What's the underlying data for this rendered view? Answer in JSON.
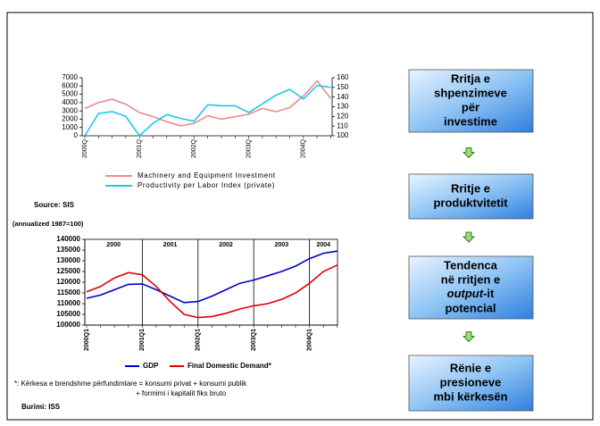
{
  "chart_data": [
    {
      "type": "line",
      "categories": [
        "2000Q",
        null,
        null,
        null,
        "2001Q",
        null,
        null,
        null,
        "2002Q",
        null,
        null,
        null,
        "2003Q",
        null,
        null,
        null,
        "2004Q",
        null,
        null
      ],
      "series": [
        {
          "name": "Machinery and Equipment Investment",
          "color": "#f08a8a",
          "values": [
            3300,
            4000,
            4400,
            3800,
            2800,
            2300,
            1700,
            1200,
            1500,
            2400,
            2000,
            2300,
            2600,
            3300,
            2900,
            3400,
            4800,
            6600,
            4500
          ]
        },
        {
          "name": "Productivity per Labor Index (private)",
          "color": "#1ec8e8",
          "axis": "y2",
          "values": [
            100,
            123,
            125,
            120,
            100,
            113,
            122,
            118,
            115,
            132,
            131,
            131,
            124,
            133,
            142,
            148,
            138,
            152,
            150
          ]
        }
      ],
      "ylim": [
        0,
        7000
      ],
      "yticks": [
        0,
        1000,
        2000,
        3000,
        4000,
        5000,
        6000,
        7000
      ],
      "y2lim": [
        100,
        160
      ],
      "y2ticks": [
        100,
        110,
        120,
        130,
        140,
        150,
        160
      ],
      "source": "Source: SIS"
    },
    {
      "type": "line",
      "subtitle": "(annualized 1987=100)",
      "periods": [
        "2000",
        "2001",
        "2002",
        "2003",
        "2004"
      ],
      "categories": [
        "2000Q1",
        null,
        null,
        null,
        "2001Q1",
        null,
        null,
        null,
        "2002Q1",
        null,
        null,
        null,
        "2003Q1",
        null,
        null,
        null,
        "2004Q1",
        null,
        null
      ],
      "series": [
        {
          "name": "GDP",
          "color": "#0000cc",
          "values": [
            112500,
            114000,
            116500,
            119000,
            119200,
            116500,
            113500,
            110500,
            111000,
            113500,
            116500,
            119500,
            121000,
            123000,
            125000,
            127500,
            131000,
            133500,
            134500
          ]
        },
        {
          "name": "Final Domestic Demand*",
          "color": "#e00000",
          "values": [
            115500,
            118000,
            122000,
            124500,
            123500,
            118000,
            111000,
            105000,
            103500,
            104000,
            105500,
            107500,
            109000,
            110000,
            112000,
            115000,
            119500,
            125000,
            128000
          ]
        }
      ],
      "ylim": [
        100000,
        140000
      ],
      "yticks": [
        100000,
        105000,
        110000,
        115000,
        120000,
        125000,
        130000,
        135000,
        140000
      ],
      "footnote": [
        "*: Kërkesa e brendshme përfundimtare = konsumi privat + konsumi publik",
        "+ formimi i kapitalit fiks bruto"
      ],
      "source": "Burimi: ISS"
    }
  ],
  "flow": [
    {
      "lines": [
        "Rritja e",
        "shpenzimeve",
        "për",
        "investime"
      ]
    },
    {
      "lines": [
        "Rritje e",
        "produktvitetit"
      ]
    },
    {
      "lines": [
        "Tendenca",
        "në rritjen e",
        [
          "output",
          "-it"
        ],
        "potencial"
      ]
    },
    {
      "lines": [
        "Rënie e",
        "presioneve",
        "mbi kërkesën"
      ]
    }
  ]
}
